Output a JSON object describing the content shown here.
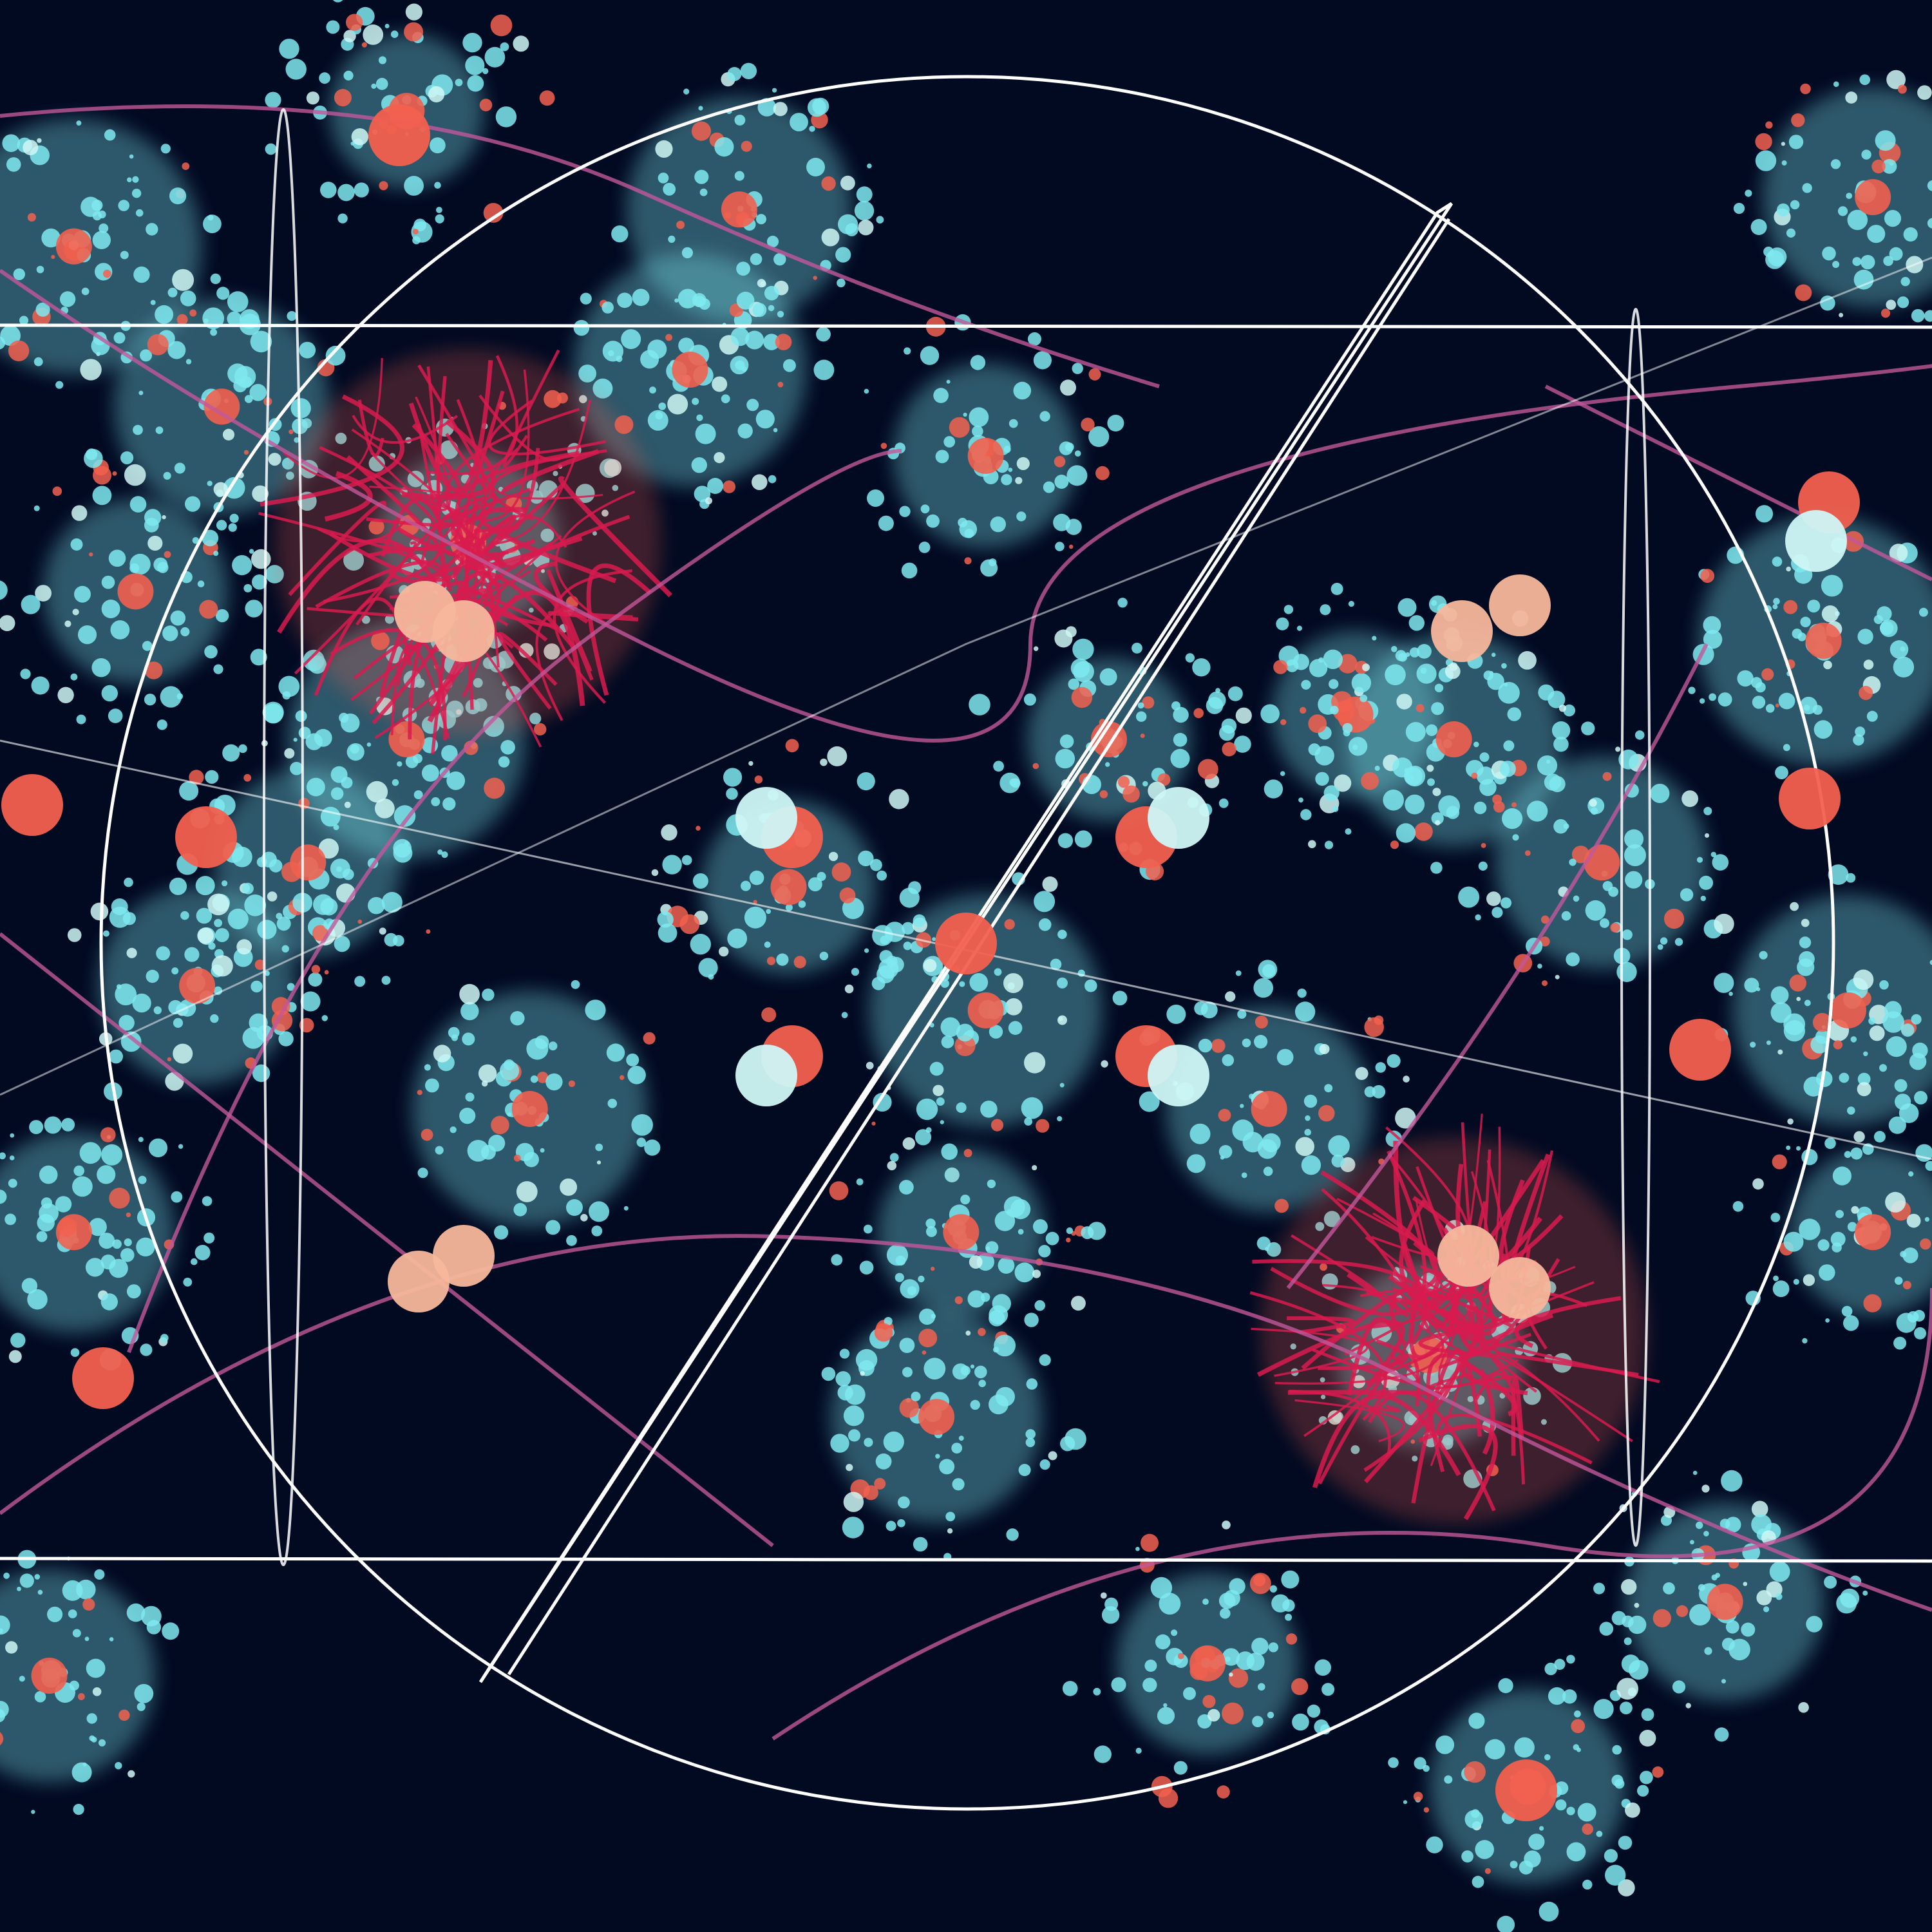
{
  "artwork": {
    "type": "fractal-art",
    "colors": {
      "background": "#020a22",
      "cyan": "#7fe9f0",
      "pale_cyan": "#cff7f5",
      "coral": "#f2604f",
      "peach": "#f7b79c",
      "crimson": "#d81b4f",
      "magenta_line": "#c2579a",
      "white_line": "#ffffff",
      "deep_blue": "#0f4c8a"
    }
  }
}
